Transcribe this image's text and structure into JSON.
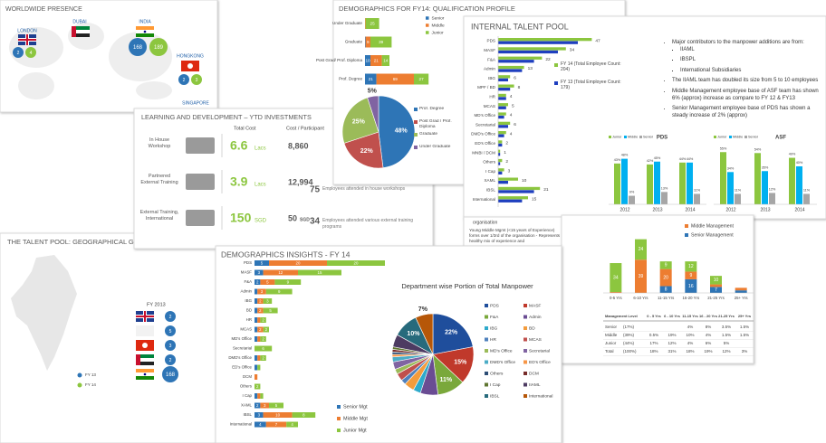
{
  "worldwide": {
    "title": "WORLDWIDE PRESENCE",
    "locations": [
      {
        "name": "LONDON",
        "fy13": 2,
        "fy14": 4
      },
      {
        "name": "DUBAI"
      },
      {
        "name": "INDIA",
        "fy13": 168,
        "fy14": 189
      },
      {
        "name": "HONGKONG",
        "fy13": 2,
        "fy14": 3
      },
      {
        "name": "SINGAPORE"
      }
    ]
  },
  "learning": {
    "title": "LEARNING AND DEVELOPMENT – YTD INVESTMENTS",
    "headers": [
      "Total Cost",
      "Cost / Participant"
    ],
    "rows": [
      {
        "label": "In House Workshop",
        "total": 6.6,
        "total_unit": "Lacs",
        "per": "8,860"
      },
      {
        "label": "Partnered External Training",
        "total": 3.9,
        "total_unit": "Lacs",
        "per": "12,994"
      },
      {
        "label": "External Training, International",
        "total": 150,
        "total_unit": "SGD",
        "per": 50,
        "per_unit": "SGD"
      }
    ],
    "stats": [
      {
        "value": 75,
        "text": "Employees attended in house workshops"
      },
      {
        "value": 34,
        "text": "Employees attended various external training programs"
      }
    ]
  },
  "qualification": {
    "title": "DEMOGRAPHICS FOR FY14: QUALIFICATION PROFILE",
    "bar": {
      "type": "stacked-hbar",
      "categories": [
        "Under Graduate",
        "Graduate",
        "Post Grad/ Prof. Diploma",
        "Prof. Degree"
      ],
      "series": [
        {
          "name": "Senior",
          "color": "#2e75b6",
          "values": [
            0,
            1,
            10,
            21
          ]
        },
        {
          "name": "Middle",
          "color": "#ed7d31",
          "values": [
            1,
            9,
            21,
            69
          ]
        },
        {
          "name": "Junior",
          "color": "#8cc63f",
          "values": [
            25,
            39,
            14,
            27
          ]
        }
      ]
    },
    "pie": {
      "type": "pie",
      "categories": [
        "Prof. Degree",
        "Post Grad / Prof. Diploma",
        "Graduate",
        "Under Graduate"
      ],
      "values": [
        48,
        22,
        25,
        5
      ],
      "value_labels": [
        "48%",
        "22%",
        "25%",
        "5%"
      ],
      "colors": [
        "#2e75b6",
        "#c0504d",
        "#9bbb59",
        "#8064a2"
      ]
    }
  },
  "talent_pool": {
    "title": "INTERNAL TALENT POOL",
    "chart": {
      "type": "grouped-hbar",
      "categories": [
        "PDS",
        "MASF",
        "F&A",
        "Admin",
        "IBG",
        "MPF / BD",
        "HR",
        "MCAS",
        "MD's Office",
        "Secretarial",
        "DMD's Office",
        "ED's Office",
        "MNBI / DCM",
        "Others",
        "I Cap",
        "XAML",
        "IBSL",
        "International"
      ],
      "series": [
        {
          "name": "FY 14 (Total Employee Count: 204)",
          "color": "#8cc63f",
          "values": [
            47,
            34,
            22,
            13,
            6,
            8,
            4,
            5,
            4,
            6,
            4,
            2,
            1,
            2,
            3,
            10,
            21,
            15
          ]
        },
        {
          "name": "FY 13 (Total Employee Count: 179)",
          "color": "#1f3fbf",
          "values": [
            40,
            30,
            18,
            12,
            5,
            6,
            4,
            4,
            3,
            5,
            3,
            2,
            1,
            1,
            2,
            5,
            18,
            12
          ]
        }
      ]
    },
    "bullets": [
      {
        "text": "Major contributors to the manpower additions are from:",
        "sub": [
          "IIAML",
          "IBSPL",
          "International Subsidiaries"
        ]
      },
      {
        "text": "The IIAML team has doubled its size from 5 to 10 employees"
      },
      {
        "text": "Middle Management employee base of ASF team has shown 6% (approx) increase as compare to FY 12 & FY13"
      },
      {
        "text": "Senior Management employee base of PDS has shown a steady increase of  2% (approx)"
      }
    ],
    "pds": {
      "type": "column",
      "title": "PDS",
      "categories": [
        "2012",
        "2013",
        "2014"
      ],
      "ylim": [
        0,
        60
      ],
      "series": [
        {
          "name": "Junior",
          "color": "#8cc63f",
          "values": [
            43,
            42,
            44
          ],
          "value_labels": [
            "43%",
            "42%",
            "44%"
          ]
        },
        {
          "name": "Middle",
          "color": "#00b0f0",
          "values": [
            48,
            45,
            44
          ],
          "value_labels": [
            "48%",
            "45%",
            "44%"
          ]
        },
        {
          "name": "Senior",
          "color": "#a6a6a6",
          "values": [
            9,
            13,
            11
          ],
          "value_labels": [
            "9%",
            "13%",
            "11%"
          ]
        }
      ]
    },
    "asf": {
      "type": "column",
      "title": "ASF",
      "categories": [
        "2012",
        "2013",
        "2014"
      ],
      "ylim": [
        0,
        60
      ],
      "series": [
        {
          "name": "Junior",
          "color": "#8cc63f",
          "values": [
            55,
            54,
            49
          ],
          "value_labels": [
            "55%",
            "54%",
            "49%"
          ]
        },
        {
          "name": "Middle",
          "color": "#00b0f0",
          "values": [
            34,
            35,
            40
          ],
          "value_labels": [
            "34%",
            "35%",
            "40%"
          ]
        },
        {
          "name": "Senior",
          "color": "#a6a6a6",
          "values": [
            11,
            12,
            11
          ],
          "value_labels": [
            "11%",
            "12%",
            "11%"
          ]
        }
      ]
    }
  },
  "notes": {
    "lines": [
      "organisation",
      "Young Middle Mgmt (<15 years of Experience) forms over 1/3rd of the organisation - Represents healthy mix of experience and"
    ]
  },
  "geo": {
    "title": "THE TALENT POOL: GEOGRAPHICAL GRO",
    "year": "FY 2013",
    "counts": [
      2,
      5,
      3,
      2,
      168
    ],
    "legend": [
      "FY 13",
      "FY 14"
    ]
  },
  "experience": {
    "chart": {
      "type": "stacked-column",
      "categories": [
        "0-5 Yrs",
        "6-10 Yrs",
        "11-15 Yrs",
        "16-20 Yrs",
        "21-25 Yrs",
        "25+ Yrs"
      ],
      "ylim": [
        0,
        70
      ],
      "series": [
        {
          "color": "#8cc63f",
          "values": [
            34,
            24,
            9,
            12,
            10,
            0
          ]
        },
        {
          "name": "Middle Management",
          "color": "#ed7d31",
          "values": [
            1,
            39,
            20,
            9,
            3,
            3
          ]
        },
        {
          "name": "Senior Management",
          "color": "#2e75b6",
          "values": [
            0,
            0,
            8,
            16,
            7,
            3
          ]
        }
      ]
    },
    "table": {
      "header": [
        "Management Level",
        "0 - 5 Yrs",
        "6 - 10 Yrs",
        "11-15 Yrs",
        "16 - 20 Yrs",
        "21-25 Yrs",
        "25+ Yrs"
      ],
      "rows": [
        [
          "Senior",
          "(17%)",
          null,
          null,
          "4%",
          "8%",
          "3.5%",
          "1.5%"
        ],
        [
          "Middle",
          "(39%)",
          "0.5%",
          "19%",
          "10%",
          "4%",
          "1.5%",
          "1.5%"
        ],
        [
          "Junior",
          "(44%)",
          "17%",
          "12%",
          "4%",
          "6%",
          "5%",
          null
        ],
        [
          "Total",
          "(100%)",
          "18%",
          "31%",
          "18%",
          "19%",
          "12%",
          "3%"
        ]
      ]
    }
  },
  "insights": {
    "title": "DEMOGRAPHICS INSIGHTS - FY 14",
    "bar": {
      "type": "stacked-hbar",
      "categories": [
        "PDS",
        "MASF",
        "F&A",
        "Admin",
        "IBG",
        "BD",
        "HR",
        "MCAS",
        "MD's Office",
        "Secretarial",
        "DMD's Office",
        "ED's Office",
        "DCM",
        "Others",
        "I Cap",
        "XAML",
        "IBSL",
        "International"
      ],
      "series": [
        {
          "name": "Senior Mgt",
          "color": "#2e75b6",
          "values": [
            5,
            3,
            2,
            1,
            1,
            1,
            1,
            1,
            1,
            0,
            1,
            1,
            0,
            0,
            1,
            2,
            3,
            4
          ]
        },
        {
          "name": "Middle Mgt",
          "color": "#ed7d31",
          "values": [
            20,
            12,
            5,
            3,
            2,
            2,
            1,
            2,
            1,
            0,
            1,
            0,
            1,
            0,
            1,
            3,
            10,
            7
          ]
        },
        {
          "name": "Junior Mgt",
          "color": "#8cc63f",
          "values": [
            20,
            15,
            9,
            9,
            3,
            5,
            2,
            2,
            2,
            6,
            2,
            1,
            0,
            2,
            1,
            5,
            8,
            4
          ]
        }
      ]
    },
    "pie": {
      "type": "pie",
      "title": "Department wise Portion of Total Manpower",
      "categories": [
        "PDS",
        "MASF",
        "F&A",
        "Admin",
        "IBG",
        "BD",
        "HR",
        "MCAS",
        "MD's Office",
        "Secretarial",
        "DMD's Office",
        "ED's Office",
        "Others",
        "DCM",
        "I Cap",
        "IIAML",
        "IBSL",
        "International"
      ],
      "values": [
        22,
        15,
        11,
        7,
        3,
        4,
        2,
        3,
        2,
        3,
        2,
        1,
        1,
        1,
        1,
        5,
        10,
        7
      ],
      "value_labels": [
        "22%",
        "15%",
        "11%",
        null,
        null,
        null,
        null,
        null,
        null,
        null,
        null,
        null,
        null,
        null,
        null,
        null,
        "10%",
        "7%"
      ],
      "colors": [
        "#1f4e9c",
        "#c0392b",
        "#7aa83b",
        "#6a4c93",
        "#2eaacb",
        "#f39c3c",
        "#4f81bd",
        "#c0504d",
        "#9bbb59",
        "#8064a2",
        "#4bacc6",
        "#f79646",
        "#2c4d75",
        "#772c2a",
        "#5f7530",
        "#4d3b62",
        "#276a7c",
        "#b65708"
      ]
    }
  }
}
